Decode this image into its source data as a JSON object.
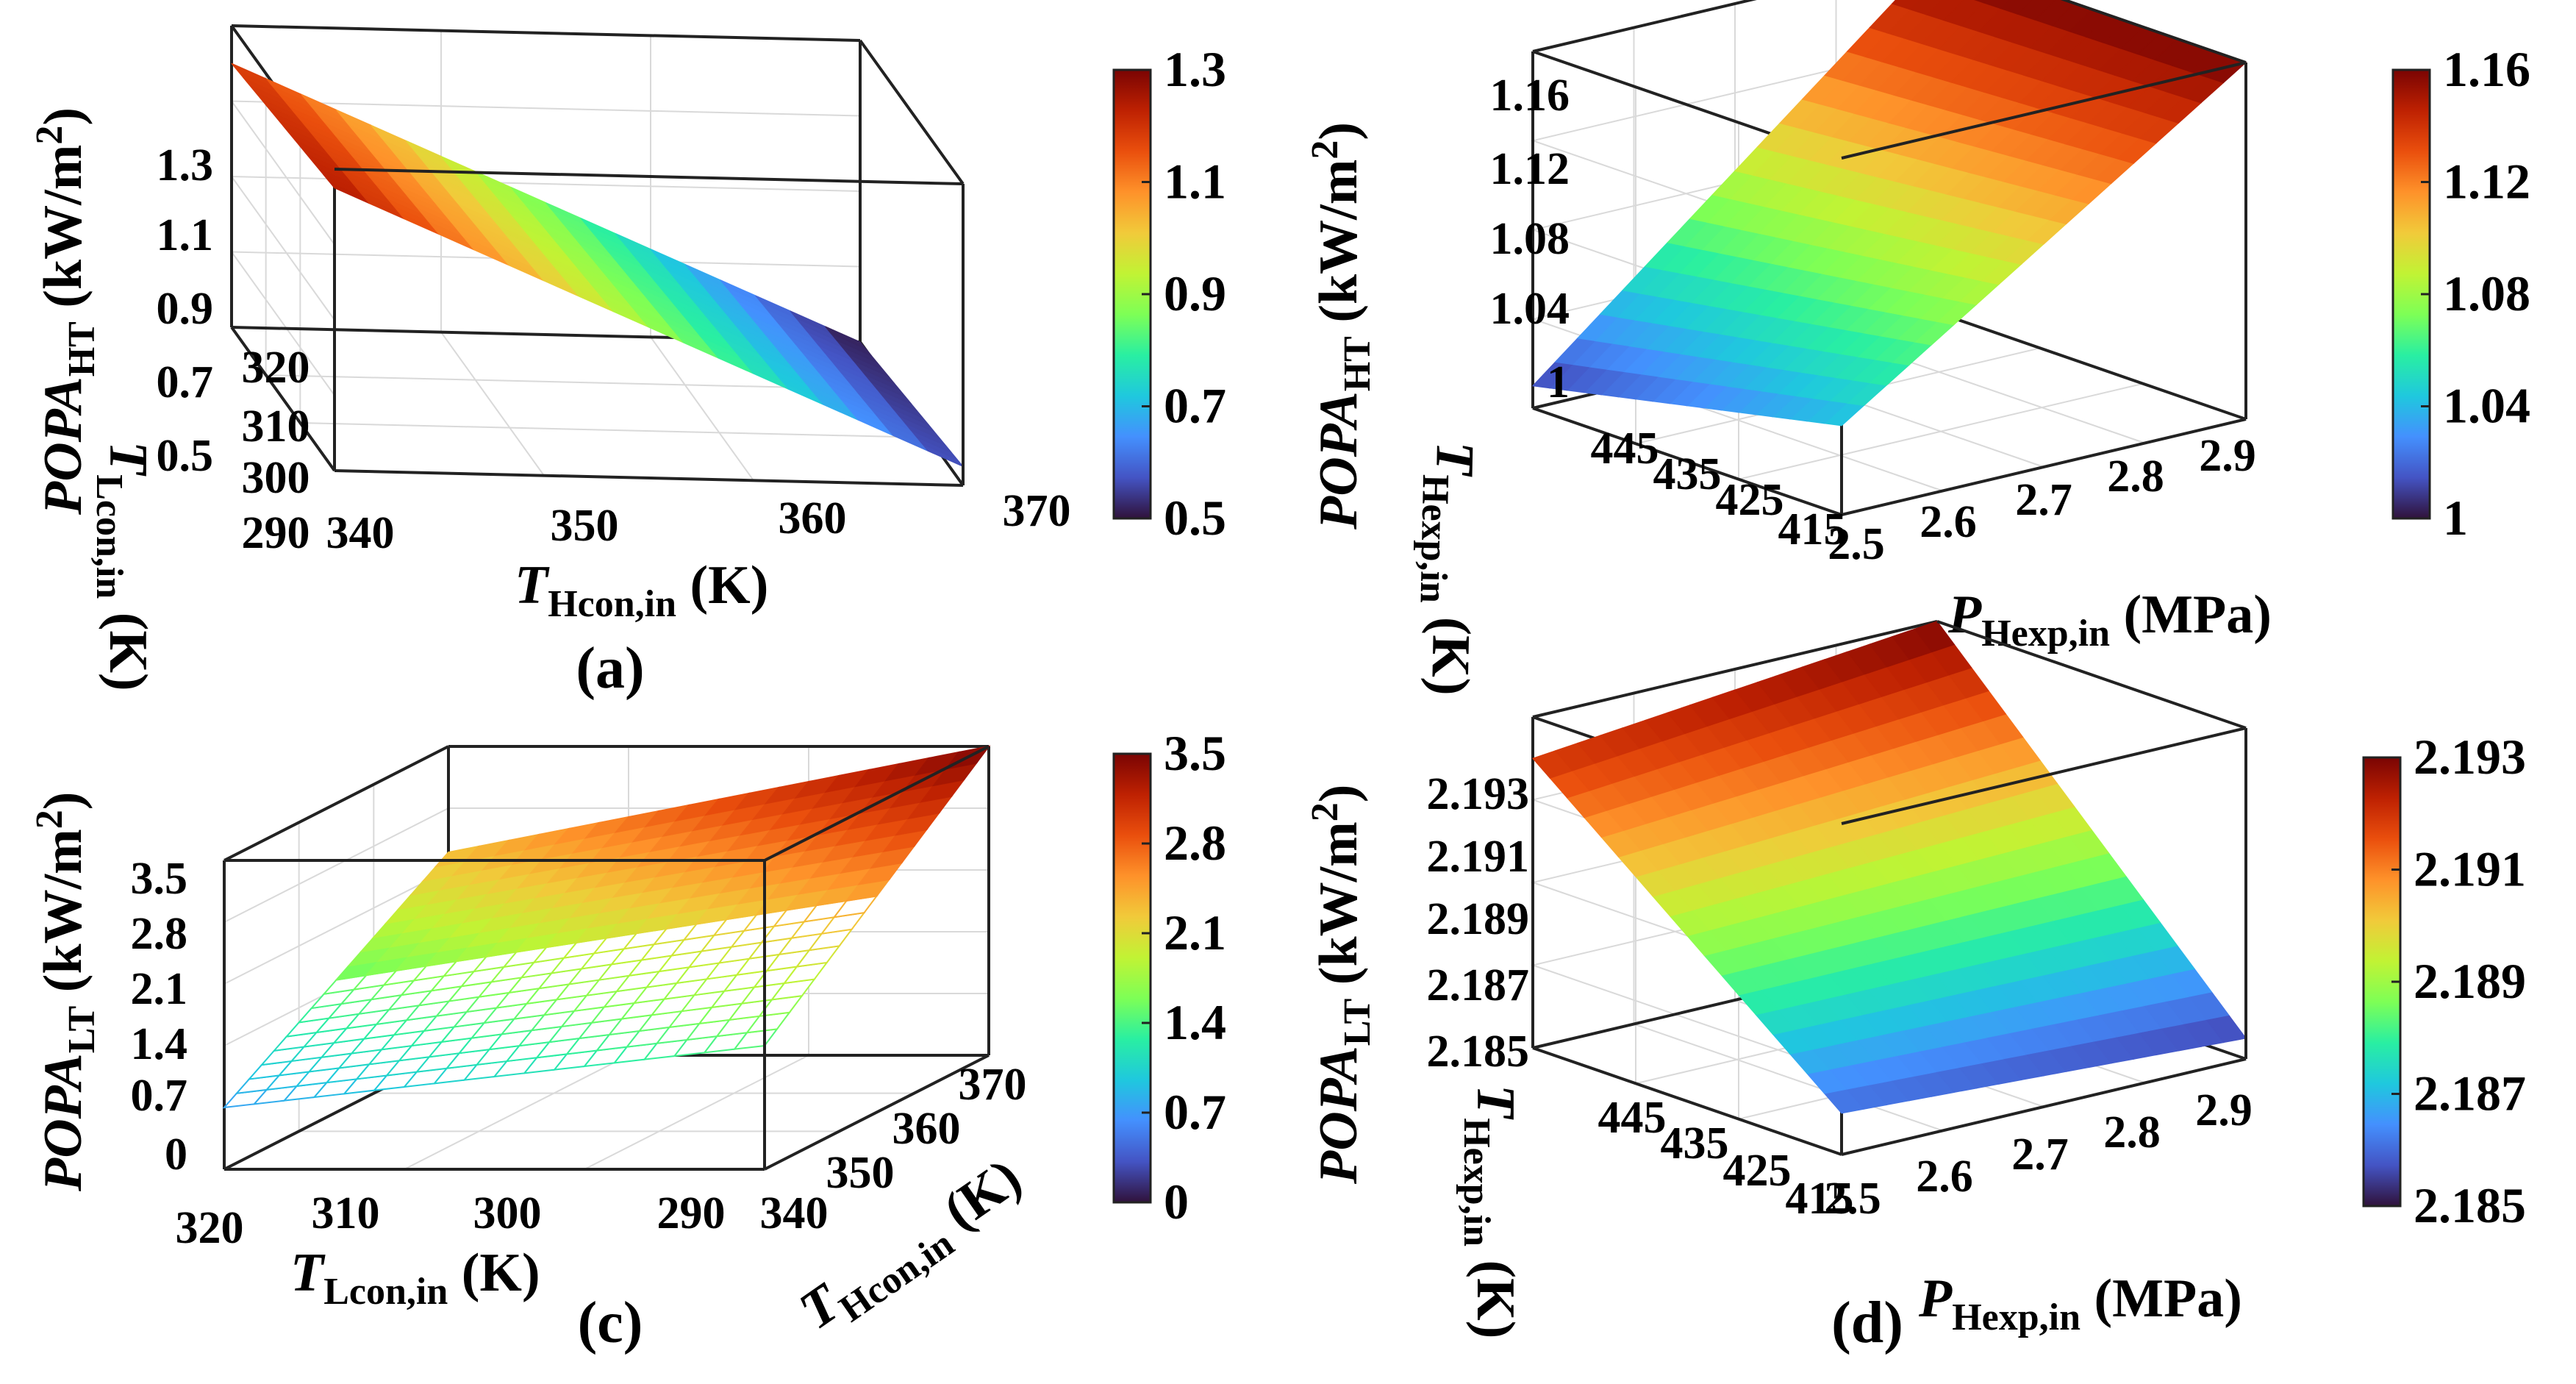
{
  "colormap": [
    "#30123b",
    "#4454c4",
    "#4490fe",
    "#1fc8de",
    "#29efa2",
    "#7dff56",
    "#c1f334",
    "#f1ca3a",
    "#fe922a",
    "#ea4f0d",
    "#be2102",
    "#7a0403"
  ],
  "chart_data": [
    {
      "panel": "(a)",
      "type": "surface3d",
      "xlabel": {
        "base": "T",
        "sub": "Hcon,in",
        "unit": "(K)"
      },
      "ylabel": {
        "base": "T",
        "sub": "Lcon,in",
        "unit": "(K)"
      },
      "zlabel": {
        "base": "POPA",
        "sub": "HT",
        "unit": "(kW/m",
        "sup": "2",
        "close": ")"
      },
      "x_ticks": [
        "340",
        "350",
        "360",
        "370"
      ],
      "y_ticks": [
        "290",
        "300",
        "310",
        "320"
      ],
      "z_ticks": [
        "0.5",
        "0.7",
        "0.9",
        "1.1",
        "1.3"
      ],
      "colorbar_ticks": [
        "0.5",
        "0.7",
        "0.9",
        "1.1",
        "1.3"
      ],
      "xlim": [
        340,
        370
      ],
      "ylim": [
        290,
        320
      ],
      "zlim": [
        0.5,
        1.3
      ],
      "clim": [
        0.5,
        1.3
      ],
      "corner_values": {
        "x_min_y_min": 1.25,
        "x_max_y_min": 0.55,
        "x_min_y_max": 1.2,
        "x_max_y_max": 0.5
      }
    },
    {
      "panel": "(b)",
      "type": "surface3d",
      "xlabel": {
        "base": "P",
        "sub": "Hexp,in",
        "unit": "(MPa)"
      },
      "ylabel": {
        "base": "T",
        "sub": "Hexp,in",
        "unit": "(K)"
      },
      "zlabel": {
        "base": "POPA",
        "sub": "HT",
        "unit": "(kW/m",
        "sup": "2",
        "close": ")"
      },
      "x_ticks": [
        "2.5",
        "2.6",
        "2.7",
        "2.8",
        "2.9"
      ],
      "y_ticks": [
        "415",
        "425",
        "435",
        "445"
      ],
      "z_ticks": [
        "1",
        "1.04",
        "1.08",
        "1.12",
        "1.16"
      ],
      "colorbar_ticks": [
        "1",
        "1.04",
        "1.08",
        "1.12",
        "1.16"
      ],
      "xlim": [
        2.5,
        2.9
      ],
      "ylim": [
        415,
        445
      ],
      "zlim": [
        1.0,
        1.16
      ],
      "clim": [
        1.0,
        1.16
      ],
      "corner_values": {
        "x_min_y_min": 1.04,
        "x_max_y_min": 1.16,
        "x_min_y_max": 1.01,
        "x_max_y_max": 1.16
      }
    },
    {
      "panel": "(c)",
      "type": "surface3d",
      "xlabel": {
        "base": "T",
        "sub": "Lcon,in",
        "unit": "(K)"
      },
      "ylabel": {
        "base": "T",
        "sub": "Hcon,in",
        "unit": "(K)"
      },
      "zlabel": {
        "base": "POPA",
        "sub": "LT",
        "unit": "(kW/m",
        "sup": "2",
        "close": ")"
      },
      "x_ticks": [
        "320",
        "310",
        "300",
        "290"
      ],
      "y_ticks": [
        "340",
        "350",
        "360",
        "370"
      ],
      "z_ticks": [
        "0",
        "0.7",
        "1.4",
        "2.1",
        "2.8",
        "3.5"
      ],
      "colorbar_ticks": [
        "0",
        "0.7",
        "1.4",
        "2.1",
        "2.8",
        "3.5"
      ],
      "xlim": [
        320,
        290
      ],
      "ylim": [
        340,
        370
      ],
      "zlim": [
        0,
        3.5
      ],
      "clim": [
        0,
        3.5
      ],
      "corner_values": {
        "x_min_y_min": 0.7,
        "x_max_y_min": 1.4,
        "x_min_y_max": 2.3,
        "x_max_y_max": 3.5
      }
    },
    {
      "panel": "(d)",
      "type": "surface3d",
      "xlabel": {
        "base": "P",
        "sub": "Hexp,in",
        "unit": "(MPa)"
      },
      "ylabel": {
        "base": "T",
        "sub": "Hexp,in",
        "unit": "(K)"
      },
      "zlabel": {
        "base": "POPA",
        "sub": "LT",
        "unit": "(kW/m",
        "sup": "2",
        "close": ")"
      },
      "x_ticks": [
        "2.5",
        "2.6",
        "2.7",
        "2.8",
        "2.9"
      ],
      "y_ticks": [
        "415",
        "425",
        "435",
        "445"
      ],
      "z_ticks": [
        "2.185",
        "2.187",
        "2.189",
        "2.191",
        "2.193"
      ],
      "colorbar_ticks": [
        "2.185",
        "2.187",
        "2.189",
        "2.191",
        "2.193"
      ],
      "xlim": [
        2.5,
        2.9
      ],
      "ylim": [
        415,
        445
      ],
      "zlim": [
        2.185,
        2.193
      ],
      "clim": [
        2.185,
        2.193
      ],
      "corner_values": {
        "x_min_y_min": 2.186,
        "x_max_y_min": 2.1855,
        "x_min_y_max": 2.192,
        "x_max_y_max": 2.193
      }
    }
  ]
}
